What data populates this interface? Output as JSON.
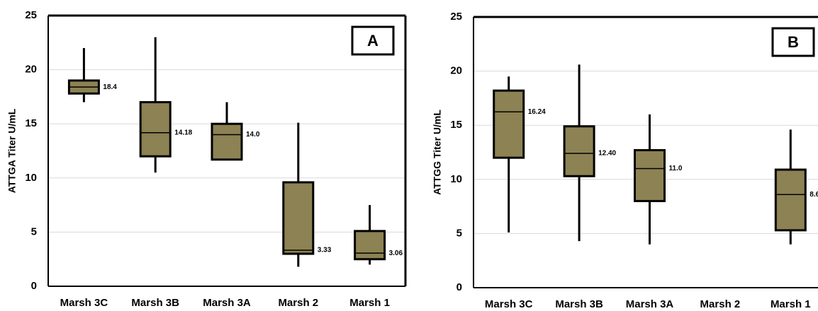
{
  "chart_data": [
    {
      "type": "box",
      "panel_label": "A",
      "y_label": "ATTGA Titer U/mL",
      "categories": [
        "Marsh 3C",
        "Marsh 3B",
        "Marsh 3A",
        "Marsh 2",
        "Marsh 1"
      ],
      "whisker_low": [
        17,
        10.5,
        11.7,
        1.8,
        2.0
      ],
      "q1": [
        17.8,
        12,
        11.7,
        3.0,
        2.5
      ],
      "median": [
        18.4,
        14.18,
        14.0,
        3.33,
        3.06
      ],
      "q3": [
        19,
        17,
        15,
        9.6,
        5.1
      ],
      "whisker_high": [
        22,
        23,
        17,
        15.1,
        7.5
      ],
      "value_labels": [
        "18.4",
        "14.18",
        "14.0",
        "3.33",
        "3.06"
      ],
      "color": "#8c8253",
      "ylim": [
        0,
        25
      ],
      "yticks": [
        0,
        5,
        10,
        15,
        20,
        25
      ],
      "grid": true
    },
    {
      "type": "box",
      "panel_label": "B",
      "y_label": "ATTGG Titer U/mL",
      "categories": [
        "Marsh 3C",
        "Marsh 3B",
        "Marsh 3A",
        "Marsh 2",
        "Marsh 1"
      ],
      "whisker_low": [
        5.1,
        4.3,
        4.0,
        null,
        4.0
      ],
      "q1": [
        12,
        10.3,
        8.0,
        null,
        5.3
      ],
      "median": [
        16.24,
        12.4,
        11.0,
        null,
        8.6
      ],
      "q3": [
        18.2,
        14.9,
        12.7,
        null,
        10.9
      ],
      "whisker_high": [
        19.5,
        20.6,
        16.0,
        null,
        14.6
      ],
      "value_labels": [
        "16.24",
        "12.40",
        "11.0",
        null,
        "8.6"
      ],
      "color": "#8c8253",
      "ylim": [
        0,
        25
      ],
      "yticks": [
        0,
        5,
        10,
        15,
        20,
        25
      ],
      "grid": true
    }
  ]
}
